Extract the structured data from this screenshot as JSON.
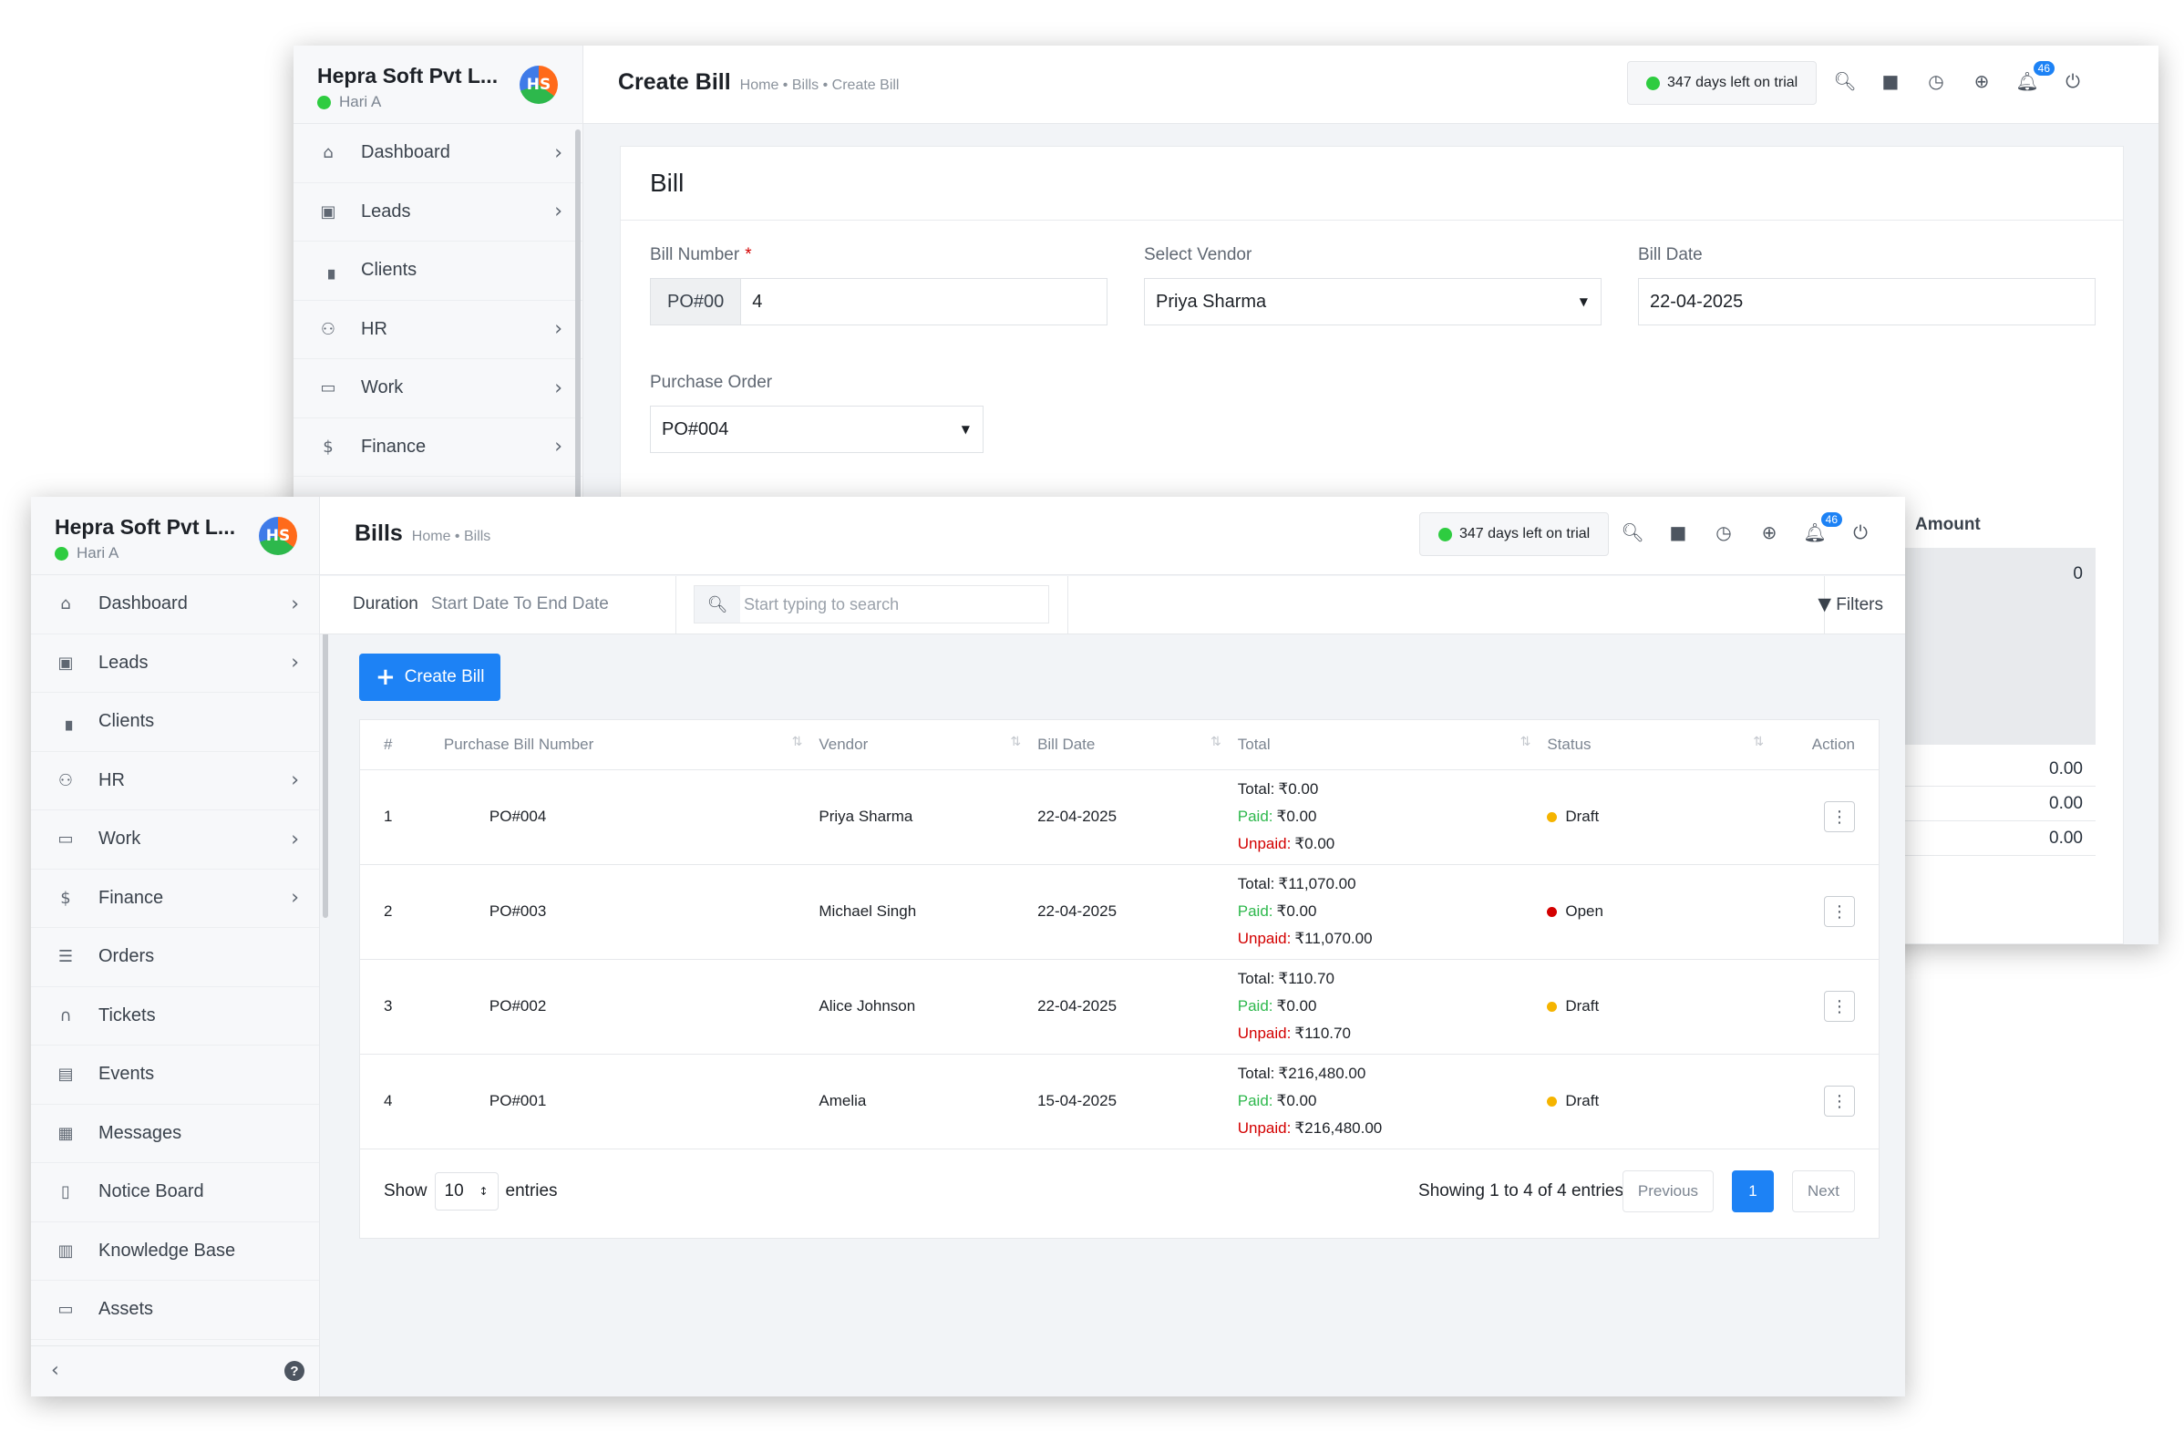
{
  "back": {
    "brand": "Hepra Soft Pvt L...",
    "user": "Hari A",
    "logo": "HS",
    "nav": [
      {
        "label": "Dashboard",
        "icon": "home-icon",
        "chevron": true
      },
      {
        "label": "Leads",
        "icon": "user-card-icon",
        "chevron": true
      },
      {
        "label": "Clients",
        "icon": "building-icon",
        "chevron": false
      },
      {
        "label": "HR",
        "icon": "users-icon",
        "chevron": true
      },
      {
        "label": "Work",
        "icon": "briefcase-icon",
        "chevron": true
      },
      {
        "label": "Finance",
        "icon": "dollar-icon",
        "chevron": true
      }
    ],
    "title": "Create Bill",
    "breadcrumb": "Home • Bills • Create Bill",
    "trial": "347 days left on trial",
    "notif_count": "46",
    "card_title": "Bill",
    "form": {
      "bill_number_label": "Bill Number",
      "bill_number_prefix": "PO#00",
      "bill_number_value": "4",
      "vendor_label": "Select Vendor",
      "vendor_value": "Priya Sharma",
      "date_label": "Bill Date",
      "date_value": "22-04-2025",
      "po_label": "Purchase Order",
      "po_value": "PO#004"
    },
    "amount_header": "Amount",
    "amount_first": "0",
    "amount_rows": [
      "0.00",
      "0.00",
      "0.00"
    ]
  },
  "front": {
    "brand": "Hepra Soft Pvt L...",
    "user": "Hari A",
    "logo": "HS",
    "nav": [
      {
        "label": "Dashboard",
        "icon": "home-icon",
        "chevron": true
      },
      {
        "label": "Leads",
        "icon": "user-card-icon",
        "chevron": true
      },
      {
        "label": "Clients",
        "icon": "building-icon",
        "chevron": false
      },
      {
        "label": "HR",
        "icon": "users-icon",
        "chevron": true
      },
      {
        "label": "Work",
        "icon": "briefcase-icon",
        "chevron": true
      },
      {
        "label": "Finance",
        "icon": "dollar-icon",
        "chevron": true
      },
      {
        "label": "Orders",
        "icon": "cart-icon",
        "chevron": false
      },
      {
        "label": "Tickets",
        "icon": "headset-icon",
        "chevron": false
      },
      {
        "label": "Events",
        "icon": "calendar-icon",
        "chevron": false
      },
      {
        "label": "Messages",
        "icon": "message-icon",
        "chevron": false
      },
      {
        "label": "Notice Board",
        "icon": "clipboard-icon",
        "chevron": false
      },
      {
        "label": "Knowledge Base",
        "icon": "document-icon",
        "chevron": false
      },
      {
        "label": "Assets",
        "icon": "monitor-icon",
        "chevron": false
      }
    ],
    "title": "Bills",
    "breadcrumb": "Home • Bills",
    "trial": "347 days left on trial",
    "notif_count": "46",
    "filter": {
      "duration_label": "Duration",
      "duration_value": "Start Date To End Date",
      "search_placeholder": "Start typing to search",
      "filters_label": "Filters"
    },
    "create_label": "Create Bill",
    "table": {
      "headers": [
        "#",
        "Purchase Bill Number",
        "Vendor",
        "Bill Date",
        "Total",
        "Status",
        "Action"
      ],
      "rows": [
        {
          "num": "1",
          "bill": "PO#004",
          "vendor": "Priya Sharma",
          "date": "22-04-2025",
          "total": "₹0.00",
          "paid": "₹0.00",
          "unpaid": "₹0.00",
          "status": "Draft",
          "status_color": "#f5b400"
        },
        {
          "num": "2",
          "bill": "PO#003",
          "vendor": "Michael Singh",
          "date": "22-04-2025",
          "total": "₹11,070.00",
          "paid": "₹0.00",
          "unpaid": "₹11,070.00",
          "status": "Open",
          "status_color": "#d30000"
        },
        {
          "num": "3",
          "bill": "PO#002",
          "vendor": "Alice Johnson",
          "date": "22-04-2025",
          "total": "₹110.70",
          "paid": "₹0.00",
          "unpaid": "₹110.70",
          "status": "Draft",
          "status_color": "#f5b400"
        },
        {
          "num": "4",
          "bill": "PO#001",
          "vendor": "Amelia",
          "date": "15-04-2025",
          "total": "₹216,480.00",
          "paid": "₹0.00",
          "unpaid": "₹216,480.00",
          "status": "Draft",
          "status_color": "#f5b400"
        }
      ],
      "total_prefix": "Total:",
      "paid_prefix": "Paid:",
      "unpaid_prefix": "Unpaid:"
    },
    "footer": {
      "show": "Show",
      "per_page": "10",
      "entries": "entries",
      "showing": "Showing 1 to 4 of 4 entries",
      "prev": "Previous",
      "page": "1",
      "next": "Next"
    }
  },
  "colors": {
    "accent": "#1d82f5",
    "paid": "#2db84c",
    "unpaid": "#d30000",
    "draft": "#f5b400",
    "online": "#2ecc40"
  }
}
